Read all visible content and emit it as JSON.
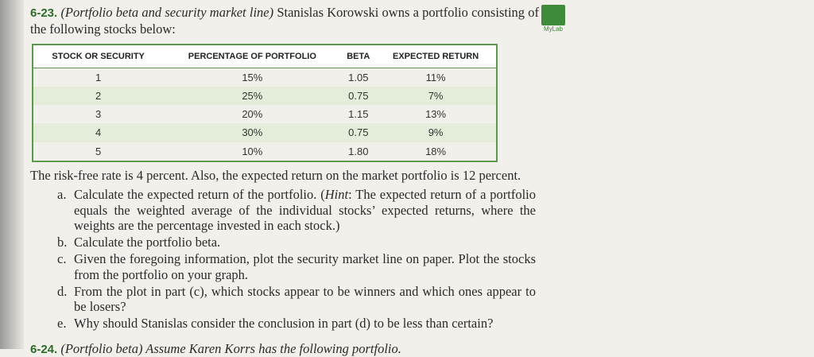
{
  "problem": {
    "number": "6-23.",
    "topic": "(Portfolio beta and security market line)",
    "text": "Stanislas Korowski owns a portfolio consisting of the following stocks below:"
  },
  "icon": {
    "label": "MyLab"
  },
  "table": {
    "header": [
      "STOCK OR SECURITY",
      "PERCENTAGE OF PORTFOLIO",
      "BETA",
      "EXPECTED RETURN"
    ],
    "rows": [
      [
        "1",
        "15%",
        "1.05",
        "11%"
      ],
      [
        "2",
        "25%",
        "0.75",
        "7%"
      ],
      [
        "3",
        "20%",
        "1.15",
        "13%"
      ],
      [
        "4",
        "30%",
        "0.75",
        "9%"
      ],
      [
        "5",
        "10%",
        "1.80",
        "18%"
      ]
    ]
  },
  "paragraph": "The risk-free rate is 4 percent. Also, the expected return on the market portfolio is 12 percent.",
  "items": [
    {
      "letter": "a.",
      "before": "Calculate the expected return of the portfolio. (",
      "hint": "Hint",
      "after": ": The expected return of a portfolio equals the weighted average of the individual stocks’ expected returns, where the weights are the percentage invested in each stock.)"
    },
    {
      "letter": "b.",
      "text": "Calculate the portfolio beta."
    },
    {
      "letter": "c.",
      "text": "Given the foregoing information, plot the security market line on paper. Plot the stocks from the portfolio on your graph."
    },
    {
      "letter": "d.",
      "text": "From the plot in part (c), which stocks appear to be winners and which ones appear to be losers?"
    },
    {
      "letter": "e.",
      "text": "Why should Stanislas consider the conclusion in part (d) to be less than certain?"
    }
  ],
  "next_problem": {
    "number": "6-24.",
    "text": "(Portfolio beta) Assume Karen Korrs has the following portfolio."
  }
}
